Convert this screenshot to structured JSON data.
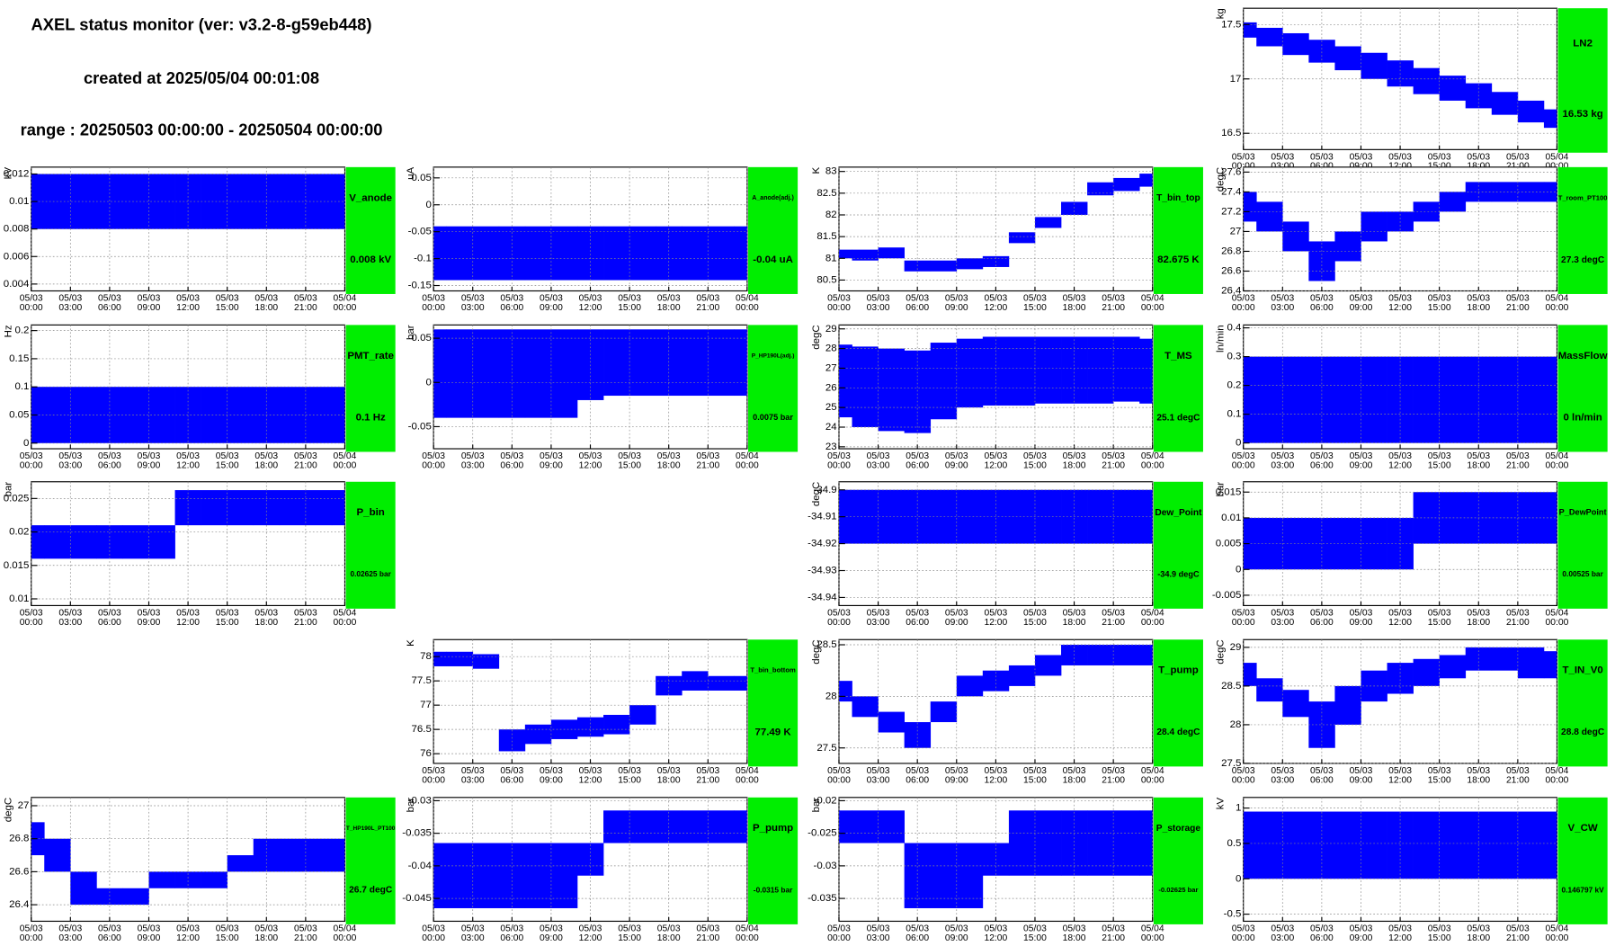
{
  "header": {
    "title": "AXEL status monitor (ver: v3.2-8-g59eb448)",
    "created": "created at 2025/05/04 00:01:08",
    "range": "range : 20250503 00:00:00 - 20250504 00:00:00"
  },
  "time_axis": {
    "xlim": [
      0,
      24
    ],
    "x": [
      0,
      2,
      4,
      6,
      8,
      10,
      12,
      14,
      16,
      18,
      20,
      22,
      24
    ],
    "xticks": [
      {
        "value": 0,
        "label": "05/03 00:00"
      },
      {
        "value": 3,
        "label": "05/03 03:00"
      },
      {
        "value": 6,
        "label": "05/03 06:00"
      },
      {
        "value": 9,
        "label": "05/03 09:00"
      },
      {
        "value": 12,
        "label": "05/03 12:00"
      },
      {
        "value": 15,
        "label": "05/03 15:00"
      },
      {
        "value": 18,
        "label": "05/03 18:00"
      },
      {
        "value": 21,
        "label": "05/03 21:00"
      },
      {
        "value": 24,
        "label": "05/04 00:00"
      }
    ]
  },
  "chart_data": [
    {
      "type": "band",
      "name": "LN2",
      "status": "16.53 kg",
      "y_label": "kg",
      "color": "#0000ff",
      "ylim": [
        16.35,
        17.65
      ],
      "yticks": [
        16.5,
        17,
        17.5
      ],
      "upper": [
        17.52,
        17.47,
        17.42,
        17.36,
        17.3,
        17.24,
        17.17,
        17.1,
        17.03,
        16.96,
        16.88,
        16.8,
        16.72
      ],
      "lower": [
        17.38,
        17.3,
        17.22,
        17.15,
        17.08,
        17.0,
        16.93,
        16.86,
        16.8,
        16.73,
        16.67,
        16.6,
        16.55
      ]
    },
    {
      "type": "band",
      "name": "V_anode",
      "status": "0.008 kV",
      "y_label": "kV",
      "color": "#0000ff",
      "ylim": [
        0.0035,
        0.0125
      ],
      "yticks": [
        0.004,
        0.006,
        0.008,
        0.01,
        0.012
      ],
      "upper": [
        0.012,
        0.012,
        0.012,
        0.012,
        0.012,
        0.012,
        0.012,
        0.012,
        0.012,
        0.012,
        0.012,
        0.012,
        0.012
      ],
      "lower": [
        0.008,
        0.008,
        0.008,
        0.008,
        0.008,
        0.008,
        0.008,
        0.008,
        0.008,
        0.008,
        0.008,
        0.008,
        0.008
      ]
    },
    {
      "type": "band",
      "name": "A_anode(adj.)",
      "status": "-0.04 uA",
      "y_label": "uA",
      "color": "#0000ff",
      "ylim": [
        -0.16,
        0.07
      ],
      "yticks": [
        -0.15,
        -0.1,
        -0.05,
        0,
        0.05
      ],
      "upper": [
        -0.04,
        -0.04,
        -0.04,
        -0.04,
        -0.04,
        -0.04,
        -0.04,
        -0.04,
        -0.04,
        -0.04,
        -0.04,
        -0.04,
        -0.04
      ],
      "lower": [
        -0.14,
        -0.14,
        -0.14,
        -0.14,
        -0.14,
        -0.14,
        -0.14,
        -0.14,
        -0.14,
        -0.14,
        -0.14,
        -0.14,
        -0.14
      ]
    },
    {
      "type": "band",
      "name": "T_bin_top",
      "status": "82.675 K",
      "y_label": "K",
      "color": "#0000ff",
      "ylim": [
        80.25,
        83.1
      ],
      "yticks": [
        80.5,
        81,
        81.5,
        82,
        82.5,
        83
      ],
      "upper": [
        81.2,
        81.2,
        81.25,
        80.95,
        80.95,
        81.0,
        81.05,
        81.6,
        81.95,
        82.3,
        82.75,
        82.85,
        82.95
      ],
      "lower": [
        81.0,
        80.95,
        81.0,
        80.7,
        80.7,
        80.75,
        80.8,
        81.35,
        81.7,
        82.0,
        82.45,
        82.55,
        82.65
      ]
    },
    {
      "type": "band",
      "name": "T_room_PT100",
      "status": "27.3 degC",
      "y_label": "degC",
      "color": "#0000ff",
      "ylim": [
        26.4,
        27.65
      ],
      "yticks": [
        26.4,
        26.6,
        26.8,
        27,
        27.2,
        27.4,
        27.6
      ],
      "upper": [
        27.4,
        27.3,
        27.1,
        26.9,
        27.0,
        27.2,
        27.2,
        27.3,
        27.4,
        27.5,
        27.5,
        27.5,
        27.5
      ],
      "lower": [
        27.1,
        27.0,
        26.8,
        26.5,
        26.7,
        26.9,
        27.0,
        27.1,
        27.2,
        27.3,
        27.3,
        27.3,
        27.3
      ]
    },
    {
      "type": "band",
      "name": "PMT_rate",
      "status": "0.1 Hz",
      "y_label": "Hz",
      "color": "#0000ff",
      "ylim": [
        -0.01,
        0.21
      ],
      "yticks": [
        0,
        0.05,
        0.1,
        0.15,
        0.2
      ],
      "upper": [
        0.1,
        0.1,
        0.1,
        0.1,
        0.1,
        0.1,
        0.1,
        0.1,
        0.1,
        0.1,
        0.1,
        0.1,
        0.1
      ],
      "lower": [
        0,
        0,
        0,
        0,
        0,
        0,
        0,
        0,
        0,
        0,
        0,
        0,
        0
      ]
    },
    {
      "type": "band",
      "name": "P_HP190L(adj.)",
      "status": "0.0075 bar",
      "y_label": "bar",
      "color": "#0000ff",
      "ylim": [
        -0.075,
        0.065
      ],
      "yticks": [
        -0.05,
        0,
        0.05
      ],
      "upper": [
        0.06,
        0.06,
        0.06,
        0.06,
        0.06,
        0.06,
        0.06,
        0.06,
        0.06,
        0.06,
        0.06,
        0.06,
        0.06
      ],
      "lower": [
        -0.04,
        -0.04,
        -0.04,
        -0.04,
        -0.04,
        -0.04,
        -0.02,
        -0.015,
        -0.015,
        -0.015,
        -0.015,
        -0.015,
        -0.015
      ]
    },
    {
      "type": "band",
      "name": "T_MS",
      "status": "25.1 degC",
      "y_label": "degC",
      "color": "#0000ff",
      "ylim": [
        22.9,
        29.2
      ],
      "yticks": [
        23,
        24,
        25,
        26,
        27,
        28,
        29
      ],
      "upper": [
        28.2,
        28.1,
        28.0,
        27.9,
        28.3,
        28.5,
        28.6,
        28.6,
        28.6,
        28.6,
        28.6,
        28.6,
        28.5
      ],
      "lower": [
        24.5,
        24.0,
        23.8,
        23.7,
        24.4,
        25.0,
        25.1,
        25.1,
        25.2,
        25.2,
        25.2,
        25.3,
        25.2
      ]
    },
    {
      "type": "band",
      "name": "MassFlow",
      "status": "0 ln/min",
      "y_label": "ln/min",
      "color": "#0000ff",
      "ylim": [
        -0.02,
        0.41
      ],
      "yticks": [
        0,
        0.1,
        0.2,
        0.3,
        0.4
      ],
      "upper": [
        0.3,
        0.3,
        0.3,
        0.3,
        0.3,
        0.3,
        0.3,
        0.3,
        0.3,
        0.3,
        0.3,
        0.3,
        0.3
      ],
      "lower": [
        0,
        0,
        0,
        0,
        0,
        0,
        0,
        0,
        0,
        0,
        0,
        0,
        0
      ]
    },
    {
      "type": "band",
      "name": "P_bin",
      "status": "0.02625 bar",
      "y_label": "bar",
      "color": "#0000ff",
      "ylim": [
        0.009,
        0.0275
      ],
      "yticks": [
        0.01,
        0.015,
        0.02,
        0.025
      ],
      "upper": [
        0.021,
        0.021,
        0.021,
        0.021,
        0.021,
        0.021,
        0.02625,
        0.02625,
        0.02625,
        0.02625,
        0.02625,
        0.02625,
        0.02625
      ],
      "lower": [
        0.016,
        0.016,
        0.016,
        0.016,
        0.016,
        0.016,
        0.021,
        0.021,
        0.021,
        0.021,
        0.021,
        0.021,
        0.021
      ]
    },
    null,
    {
      "type": "band",
      "name": "Dew_Point",
      "status": "-34.9 degC",
      "y_label": "degC",
      "color": "#0000ff",
      "ylim": [
        -34.943,
        -34.897
      ],
      "yticks": [
        -34.94,
        -34.93,
        -34.92,
        -34.91,
        -34.9
      ],
      "upper": [
        -34.9,
        -34.9,
        -34.9,
        -34.9,
        -34.9,
        -34.9,
        -34.9,
        -34.9,
        -34.9,
        -34.9,
        -34.9,
        -34.9,
        -34.9
      ],
      "lower": [
        -34.92,
        -34.92,
        -34.92,
        -34.92,
        -34.92,
        -34.92,
        -34.92,
        -34.92,
        -34.92,
        -34.92,
        -34.92,
        -34.92,
        -34.92
      ]
    },
    {
      "type": "band",
      "name": "P_DewPoint",
      "status": "0.00525 bar",
      "y_label": "bar",
      "color": "#0000ff",
      "ylim": [
        -0.007,
        0.017
      ],
      "yticks": [
        -0.005,
        0,
        0.005,
        0.01,
        0.015
      ],
      "upper": [
        0.01,
        0.01,
        0.01,
        0.01,
        0.01,
        0.01,
        0.01,
        0.015,
        0.015,
        0.015,
        0.015,
        0.015,
        0.015
      ],
      "lower": [
        0,
        0,
        0,
        0,
        0,
        0,
        0,
        0.005,
        0.005,
        0.005,
        0.005,
        0.005,
        0.005
      ]
    },
    null,
    {
      "type": "band",
      "name": "T_bin_bottom",
      "status": "77.49 K",
      "y_label": "K",
      "color": "#0000ff",
      "ylim": [
        75.8,
        78.35
      ],
      "yticks": [
        76,
        76.5,
        77,
        77.5,
        78
      ],
      "upper": [
        78.1,
        78.1,
        78.05,
        76.5,
        76.6,
        76.7,
        76.75,
        76.8,
        77.0,
        77.6,
        77.7,
        77.6,
        77.6
      ],
      "lower": [
        77.8,
        77.8,
        77.75,
        76.05,
        76.2,
        76.3,
        76.35,
        76.4,
        76.6,
        77.2,
        77.3,
        77.3,
        77.3
      ]
    },
    {
      "type": "band",
      "name": "T_pump",
      "status": "28.4 degC",
      "y_label": "degC",
      "color": "#0000ff",
      "ylim": [
        27.35,
        28.55
      ],
      "yticks": [
        27.5,
        28,
        28.5
      ],
      "upper": [
        28.15,
        28.0,
        27.85,
        27.75,
        27.95,
        28.2,
        28.25,
        28.3,
        28.4,
        28.5,
        28.5,
        28.5,
        28.5
      ],
      "lower": [
        27.95,
        27.8,
        27.65,
        27.5,
        27.75,
        28.0,
        28.05,
        28.1,
        28.2,
        28.3,
        28.3,
        28.3,
        28.3
      ]
    },
    {
      "type": "band",
      "name": "T_IN_V0",
      "status": "28.8 degC",
      "y_label": "degC",
      "color": "#0000ff",
      "ylim": [
        27.5,
        29.1
      ],
      "yticks": [
        27.5,
        28,
        28.5,
        29
      ],
      "upper": [
        28.8,
        28.6,
        28.45,
        28.3,
        28.5,
        28.7,
        28.8,
        28.85,
        28.9,
        29.0,
        29.0,
        29.0,
        28.95
      ],
      "lower": [
        28.5,
        28.3,
        28.1,
        27.7,
        28.0,
        28.3,
        28.4,
        28.5,
        28.6,
        28.7,
        28.7,
        28.6,
        28.6
      ]
    },
    {
      "type": "band",
      "name": "T_HP190L_PT100",
      "status": "26.7 degC",
      "y_label": "degC",
      "color": "#0000ff",
      "ylim": [
        26.3,
        27.05
      ],
      "yticks": [
        26.4,
        26.6,
        26.8,
        27
      ],
      "upper": [
        26.9,
        26.8,
        26.6,
        26.5,
        26.5,
        26.6,
        26.6,
        26.6,
        26.7,
        26.8,
        26.8,
        26.8,
        26.8
      ],
      "lower": [
        26.7,
        26.6,
        26.4,
        26.4,
        26.4,
        26.5,
        26.5,
        26.5,
        26.6,
        26.6,
        26.6,
        26.6,
        26.6
      ]
    },
    {
      "type": "band",
      "name": "P_pump",
      "status": "-0.0315 bar",
      "y_label": "bar",
      "color": "#0000ff",
      "ylim": [
        -0.0485,
        -0.0295
      ],
      "yticks": [
        -0.045,
        -0.04,
        -0.035,
        -0.03
      ],
      "upper": [
        -0.0365,
        -0.0365,
        -0.0365,
        -0.0365,
        -0.0365,
        -0.0365,
        -0.0365,
        -0.0315,
        -0.0315,
        -0.0315,
        -0.0315,
        -0.0315,
        -0.0315
      ],
      "lower": [
        -0.0465,
        -0.0465,
        -0.0465,
        -0.0465,
        -0.0465,
        -0.0465,
        -0.0415,
        -0.0365,
        -0.0365,
        -0.0365,
        -0.0365,
        -0.0365,
        -0.0365
      ]
    },
    {
      "type": "band",
      "name": "P_storage",
      "status": "-0.02625 bar",
      "y_label": "bar",
      "color": "#0000ff",
      "ylim": [
        -0.0385,
        -0.0195
      ],
      "yticks": [
        -0.035,
        -0.03,
        -0.025,
        -0.02
      ],
      "upper": [
        -0.0215,
        -0.0215,
        -0.0215,
        -0.0265,
        -0.0265,
        -0.0265,
        -0.0265,
        -0.0215,
        -0.0215,
        -0.0215,
        -0.0215,
        -0.0215,
        -0.0215
      ],
      "lower": [
        -0.0265,
        -0.0265,
        -0.0265,
        -0.0365,
        -0.0365,
        -0.0365,
        -0.0315,
        -0.0315,
        -0.0315,
        -0.0315,
        -0.0315,
        -0.0315,
        -0.0315
      ]
    },
    {
      "type": "band",
      "name": "V_CW",
      "status": "0.146797 kV",
      "y_label": "kV",
      "color": "#0000ff",
      "ylim": [
        -0.6,
        1.15
      ],
      "yticks": [
        -0.5,
        0,
        0.5,
        1
      ],
      "upper": [
        0.95,
        0.95,
        0.95,
        0.95,
        0.95,
        0.95,
        0.95,
        0.95,
        0.95,
        0.95,
        0.95,
        0.95,
        0.95
      ],
      "lower": [
        0,
        0,
        0,
        0,
        0,
        0,
        0,
        0,
        0,
        0,
        0,
        0,
        0
      ]
    }
  ]
}
